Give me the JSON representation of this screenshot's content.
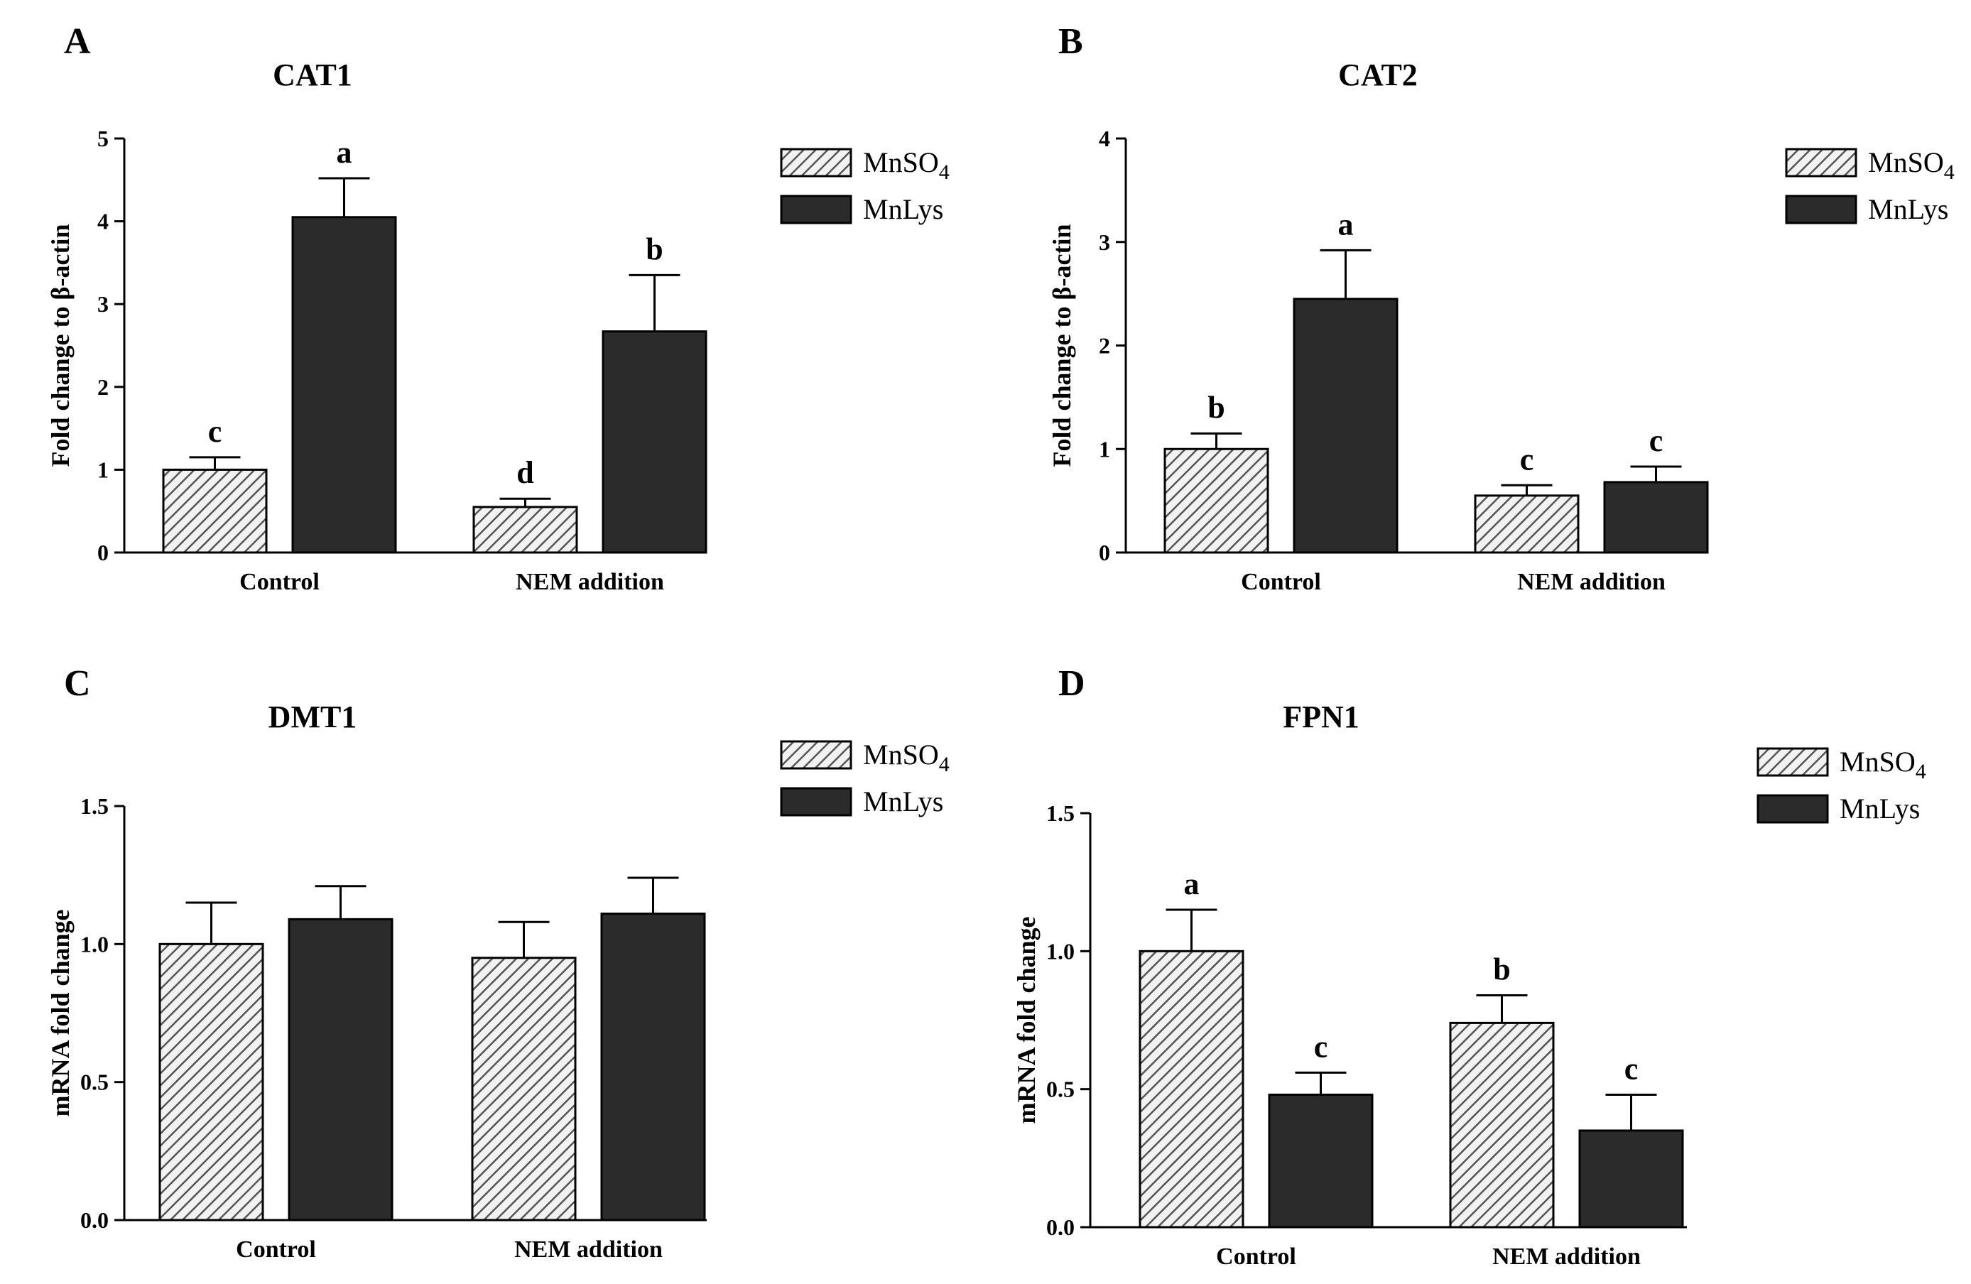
{
  "chart_data": [
    {
      "panel": "A",
      "type": "bar",
      "title": "CAT1",
      "ylabel": "Fold change to β-actin",
      "xlabel": "",
      "ylim": [
        0,
        5
      ],
      "yticks": [
        "0",
        "1",
        "2",
        "3",
        "4",
        "5"
      ],
      "categories": [
        "Control",
        "NEM addition"
      ],
      "series": [
        {
          "name": "MnSO4",
          "legend_main": "MnSO",
          "legend_sub": "4",
          "pattern": "hatch",
          "values": [
            1.0,
            0.55
          ],
          "errors": [
            0.15,
            0.1
          ],
          "letters": [
            "c",
            "d"
          ]
        },
        {
          "name": "MnLys",
          "legend_main": "MnLys",
          "legend_sub": "",
          "pattern": "solid",
          "values": [
            4.05,
            2.67
          ],
          "errors": [
            0.47,
            0.68
          ],
          "letters": [
            "a",
            "b"
          ]
        }
      ],
      "legend": "top-right"
    },
    {
      "panel": "B",
      "type": "bar",
      "title": "CAT2",
      "ylabel": "Fold change to β-actin",
      "xlabel": "",
      "ylim": [
        0,
        4
      ],
      "yticks": [
        "0",
        "1",
        "2",
        "3",
        "4"
      ],
      "categories": [
        "Control",
        "NEM addition"
      ],
      "series": [
        {
          "name": "MnSO4",
          "legend_main": "MnSO",
          "legend_sub": "4",
          "pattern": "hatch",
          "values": [
            1.0,
            0.55
          ],
          "errors": [
            0.15,
            0.1
          ],
          "letters": [
            "b",
            "c"
          ]
        },
        {
          "name": "MnLys",
          "legend_main": "MnLys",
          "legend_sub": "",
          "pattern": "solid",
          "values": [
            2.45,
            0.68
          ],
          "errors": [
            0.47,
            0.15
          ],
          "letters": [
            "a",
            "c"
          ]
        }
      ],
      "legend": "top-right"
    },
    {
      "panel": "C",
      "type": "bar",
      "title": "DMT1",
      "ylabel": "mRNA fold change",
      "xlabel": "",
      "ylim": [
        0,
        1.5
      ],
      "yticks": [
        "0.0",
        "0.5",
        "1.0",
        "1.5"
      ],
      "categories": [
        "Control",
        "NEM addition"
      ],
      "series": [
        {
          "name": "MnSO4",
          "legend_main": "MnSO",
          "legend_sub": "4",
          "pattern": "hatch",
          "values": [
            1.0,
            0.95
          ],
          "errors": [
            0.15,
            0.13
          ],
          "letters": [
            "",
            ""
          ]
        },
        {
          "name": "MnLys",
          "legend_main": "MnLys",
          "legend_sub": "",
          "pattern": "solid",
          "values": [
            1.09,
            1.11
          ],
          "errors": [
            0.12,
            0.13
          ],
          "letters": [
            "",
            ""
          ]
        }
      ],
      "legend": "top-right"
    },
    {
      "panel": "D",
      "type": "bar",
      "title": "FPN1",
      "ylabel": "mRNA fold change",
      "xlabel": "",
      "ylim": [
        0,
        1.5
      ],
      "yticks": [
        "0.0",
        "0.5",
        "1.0",
        "1.5"
      ],
      "categories": [
        "Control",
        "NEM addition"
      ],
      "series": [
        {
          "name": "MnSO4",
          "legend_main": "MnSO",
          "legend_sub": "4",
          "pattern": "hatch",
          "values": [
            1.0,
            0.74
          ],
          "errors": [
            0.15,
            0.1
          ],
          "letters": [
            "a",
            "b"
          ]
        },
        {
          "name": "MnLys",
          "legend_main": "MnLys",
          "legend_sub": "",
          "pattern": "solid",
          "values": [
            0.48,
            0.35
          ],
          "errors": [
            0.08,
            0.13
          ],
          "letters": [
            "c",
            "c"
          ]
        }
      ],
      "legend": "top-right"
    }
  ],
  "colors": {
    "axis": "#000000",
    "solid_fill": "#2b2b2b",
    "hatch_bg": "#f2f2f2",
    "hatch_line": "#555555"
  }
}
